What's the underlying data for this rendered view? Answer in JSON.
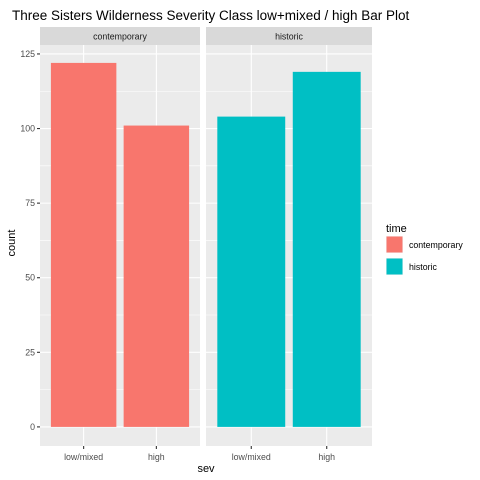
{
  "chart_data": {
    "type": "bar",
    "title": "Three Sisters Wilderness Severity Class low+mixed / high Bar Plot",
    "xlabel": "sev",
    "ylabel": "count",
    "categories": [
      "low/mixed",
      "high"
    ],
    "facets": [
      {
        "name": "contemporary",
        "color": "#F8766D",
        "values": [
          122,
          101
        ]
      },
      {
        "name": "historic",
        "color": "#00BFC4",
        "values": [
          104,
          119
        ]
      }
    ],
    "ylim": [
      0,
      128
    ],
    "yticks": [
      0,
      25,
      50,
      75,
      100,
      125
    ],
    "legend": {
      "title": "time",
      "position": "right",
      "entries": [
        {
          "label": "contemporary",
          "color": "#F8766D"
        },
        {
          "label": "historic",
          "color": "#00BFC4"
        }
      ]
    },
    "grid": true
  }
}
